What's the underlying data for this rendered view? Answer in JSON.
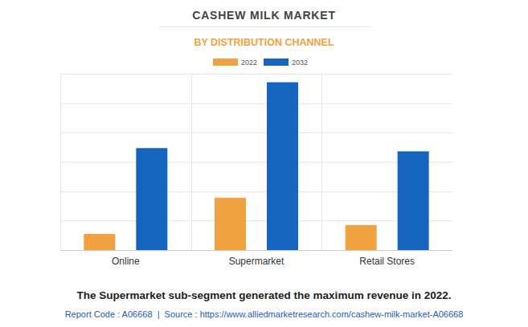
{
  "chart_data": {
    "type": "bar",
    "title": "CASHEW MILK MARKET",
    "subtitle": "BY DISTRIBUTION CHANNEL",
    "categories": [
      "Online",
      "Supermarket",
      "Retail Stores"
    ],
    "series": [
      {
        "name": "2022",
        "color": "#f0a140",
        "values": [
          0.55,
          1.78,
          0.85
        ]
      },
      {
        "name": "2032",
        "color": "#1565c0",
        "values": [
          3.47,
          5.71,
          3.36
        ]
      }
    ],
    "ylim": [
      0,
      6
    ],
    "yticks": [
      0,
      1,
      2,
      3,
      4,
      5,
      6
    ],
    "grid": true,
    "tick_labels": "x",
    "legend": "top",
    "caption": "The Supermarket sub-segment generated the maximum revenue in 2022.",
    "source": "Report Code : A06668  |  Source : https://www.alliedmarketresearch.com/cashew-milk-market-A06668"
  }
}
